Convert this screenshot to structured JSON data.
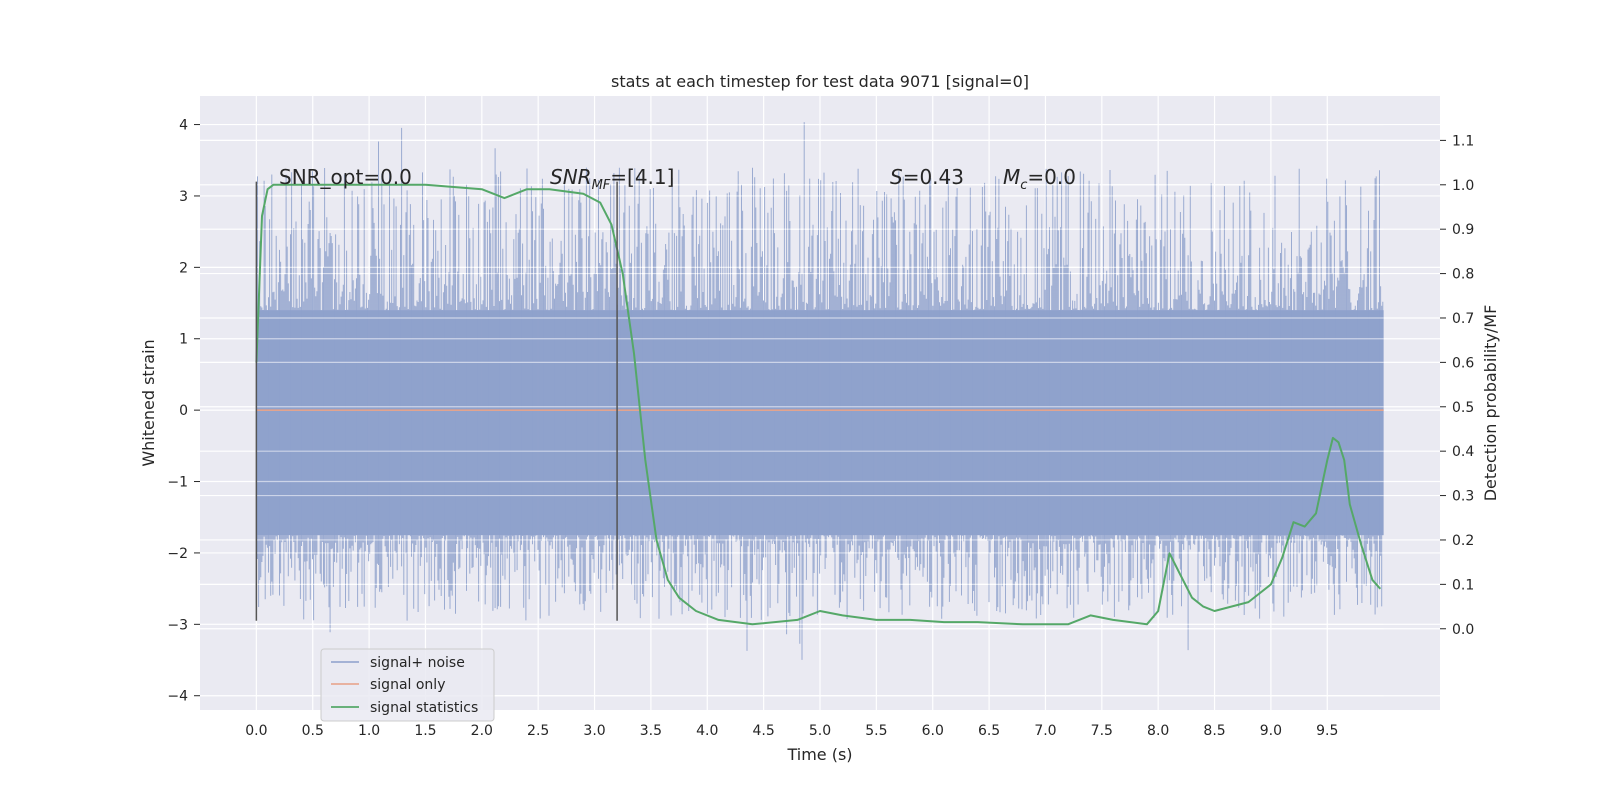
{
  "chart_data": {
    "type": "line",
    "title": "stats at each timestep for test data 9071 [signal=0]",
    "xlabel": "Time (s)",
    "ylabel": "Whitened strain",
    "ylabel_right": "Detection probability/MF",
    "xlim": [
      -0.5,
      10.5
    ],
    "ylim": [
      -4.2,
      4.4
    ],
    "ylim_right": [
      -0.183,
      1.2
    ],
    "x_ticks": [
      "0.0",
      "0.5",
      "1.0",
      "1.5",
      "2.0",
      "2.5",
      "3.0",
      "3.5",
      "4.0",
      "4.5",
      "5.0",
      "5.5",
      "6.0",
      "6.5",
      "7.0",
      "7.5",
      "8.0",
      "8.5",
      "9.0",
      "9.5"
    ],
    "y_ticks": [
      "−4",
      "−3",
      "−2",
      "−1",
      "0",
      "1",
      "2",
      "3",
      "4"
    ],
    "y_right_ticks": [
      "0.0",
      "0.1",
      "0.2",
      "0.3",
      "0.4",
      "0.5",
      "0.6",
      "0.7",
      "0.8",
      "0.9",
      "1.0",
      "1.1"
    ],
    "grid": true,
    "legend_position": "lower-left",
    "annotations": {
      "snr_opt": "SNR_opt=0.0",
      "snr_mf_base": "SNR",
      "snr_mf_sub": "MF",
      "snr_mf_rest": "=[4.1]",
      "s_var": "S",
      "s_rest": "=0.43",
      "mc_base": "M",
      "mc_sub": "c",
      "mc_rest": "=0.0"
    },
    "vertical_markers": [
      0.0,
      3.2
    ],
    "series": [
      {
        "name": "signal+ noise",
        "color": "#8da0cb",
        "kind": "noise",
        "x_range": [
          0,
          10
        ],
        "core_range": [
          -1.75,
          1.4
        ],
        "peak_range": [
          -3.6,
          4.05
        ]
      },
      {
        "name": "signal only",
        "color": "#e8a084",
        "x": [
          0,
          10
        ],
        "y": [
          0,
          0
        ]
      },
      {
        "name": "signal statistics",
        "color": "#55a868",
        "axis": "right",
        "x": [
          0.0,
          0.05,
          0.1,
          0.15,
          0.2,
          0.3,
          0.5,
          1.0,
          1.5,
          2.0,
          2.2,
          2.4,
          2.6,
          2.9,
          3.05,
          3.15,
          3.25,
          3.35,
          3.45,
          3.55,
          3.65,
          3.75,
          3.9,
          4.1,
          4.4,
          4.8,
          5.0,
          5.2,
          5.5,
          5.8,
          6.1,
          6.4,
          6.8,
          7.2,
          7.4,
          7.6,
          7.9,
          8.0,
          8.1,
          8.2,
          8.3,
          8.4,
          8.5,
          8.8,
          9.0,
          9.1,
          9.2,
          9.3,
          9.4,
          9.5,
          9.55,
          9.6,
          9.65,
          9.7,
          9.8,
          9.9,
          9.97
        ],
        "y": [
          0.6,
          0.93,
          0.99,
          1.0,
          1.0,
          1.0,
          1.0,
          1.0,
          1.0,
          0.99,
          0.97,
          0.99,
          0.99,
          0.98,
          0.96,
          0.91,
          0.8,
          0.62,
          0.38,
          0.2,
          0.11,
          0.07,
          0.04,
          0.02,
          0.01,
          0.02,
          0.04,
          0.03,
          0.02,
          0.02,
          0.015,
          0.015,
          0.01,
          0.01,
          0.03,
          0.02,
          0.01,
          0.04,
          0.17,
          0.12,
          0.07,
          0.05,
          0.04,
          0.06,
          0.1,
          0.16,
          0.24,
          0.23,
          0.26,
          0.38,
          0.43,
          0.42,
          0.38,
          0.28,
          0.19,
          0.11,
          0.09
        ]
      }
    ]
  }
}
